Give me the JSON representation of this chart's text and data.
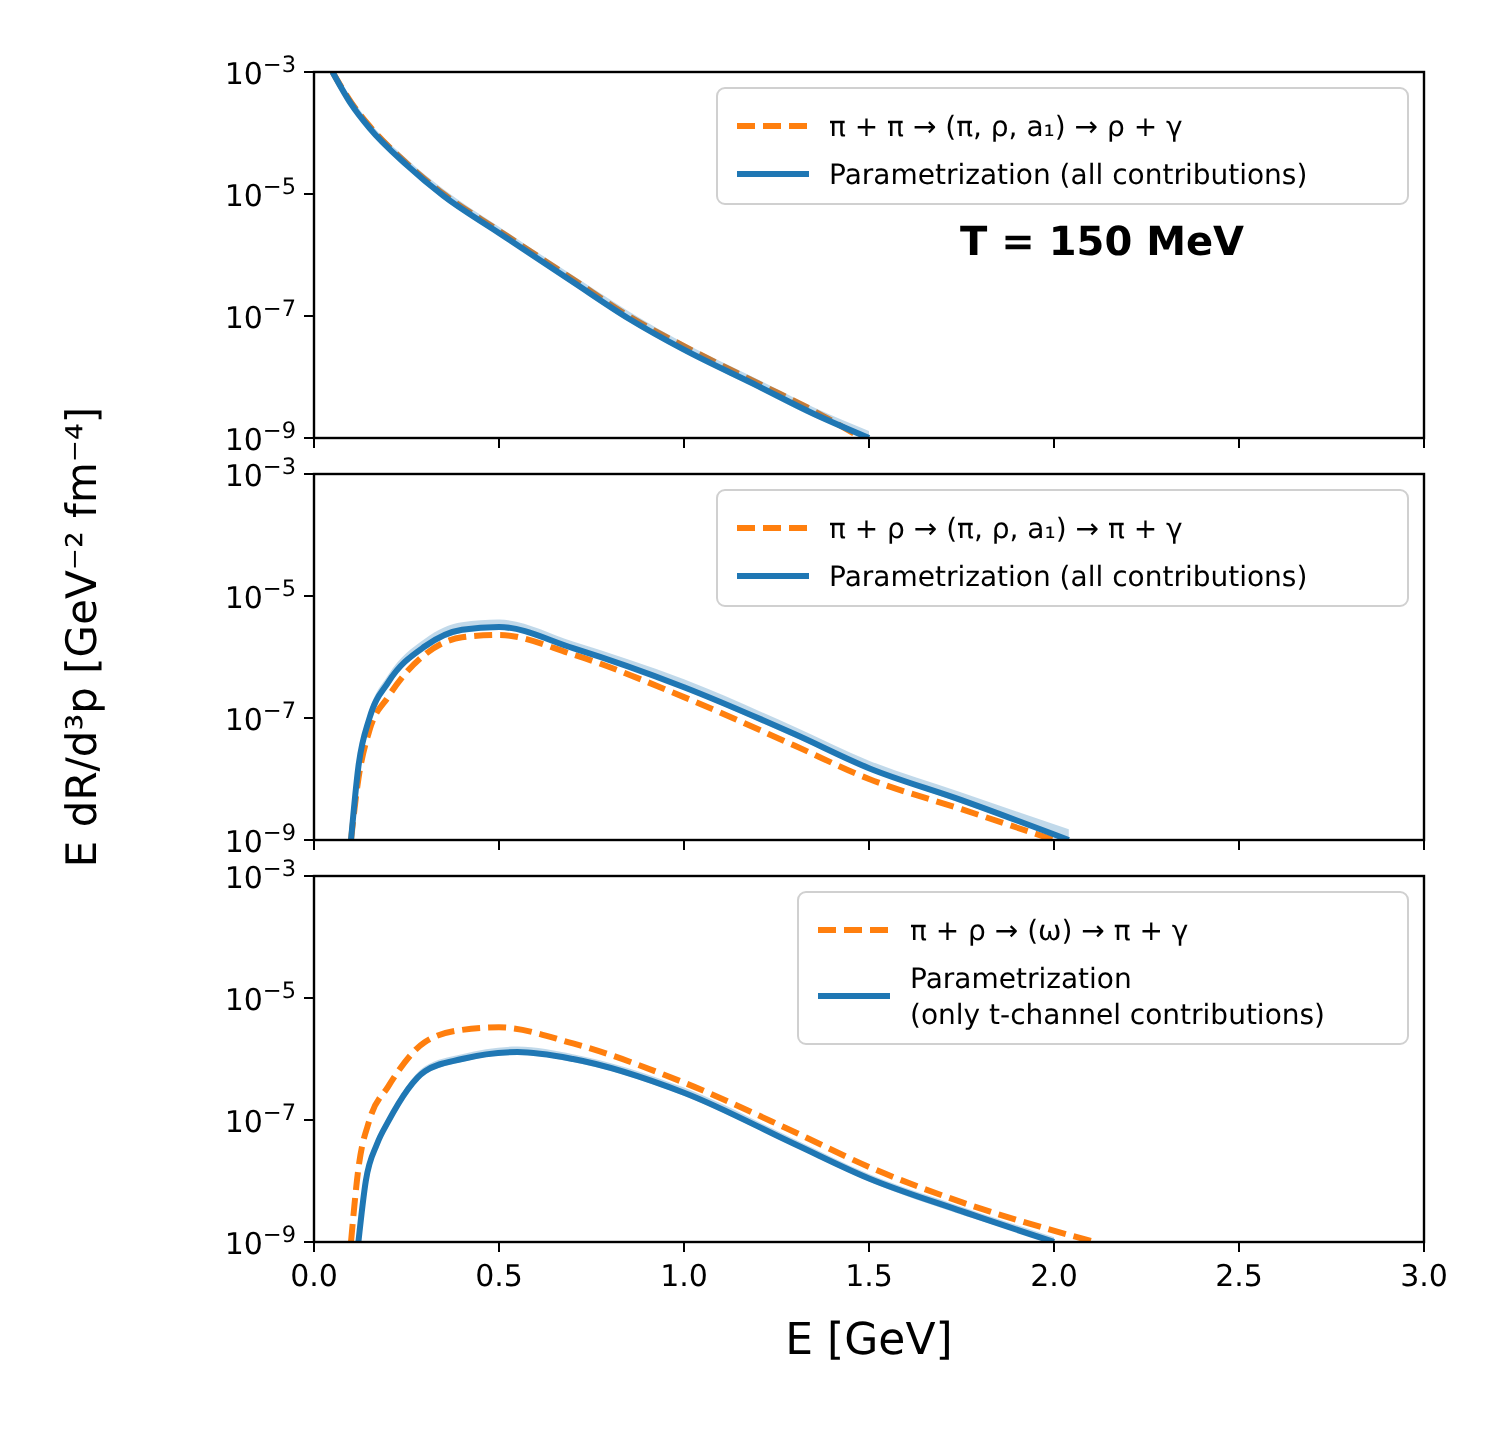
{
  "chart_data": [
    {
      "type": "line",
      "log": "y",
      "xlim": [
        0,
        3
      ],
      "ylim": [
        1e-09,
        0.001
      ],
      "tick_labels": "y",
      "legend": "top right",
      "xticks": [
        {
          "value": 0,
          "label": null
        },
        {
          "value": 0.5,
          "label": null
        },
        {
          "value": 1,
          "label": null
        },
        {
          "value": 1.5,
          "label": null
        },
        {
          "value": 2,
          "label": null
        },
        {
          "value": 2.5,
          "label": null
        },
        {
          "value": 3,
          "label": null
        }
      ],
      "yticks": [
        {
          "value": 1e-09,
          "label": "10$^{−9}$"
        },
        {
          "value": 1e-07,
          "label": "10$^{−7}$"
        },
        {
          "value": 1e-05,
          "label": "10$^{−5}$"
        },
        {
          "value": 0.001,
          "label": "10$^{−3}$"
        }
      ],
      "annotations": [
        "T = 150 MeV"
      ],
      "series": [
        {
          "name": "π + π → (π, ρ, a₁) → ρ + γ",
          "color": "#ff7f0e",
          "line_style": "dashed",
          "x": [
            0.05,
            0.1,
            0.15,
            0.25,
            0.35,
            0.5,
            0.7,
            0.85,
            1.0,
            1.2,
            1.35,
            1.48
          ],
          "values": [
            0.001,
            0.00032,
            0.00013,
            3.2e-05,
            1e-05,
            2.5e-06,
            4e-07,
            1e-07,
            3.2e-08,
            7.9e-09,
            2.8e-09,
            1e-09
          ]
        },
        {
          "name": "Parametrization (all contributions)",
          "color": "#1f77b4",
          "line_style": "solid",
          "x": [
            0.05,
            0.1,
            0.15,
            0.25,
            0.35,
            0.5,
            0.7,
            0.85,
            1.0,
            1.2,
            1.35,
            1.5
          ],
          "values": [
            0.001,
            0.0003,
            0.00012,
            3e-05,
            9.3e-06,
            2.3e-06,
            3.6e-07,
            9.1e-08,
            2.8e-08,
            7.1e-09,
            2.5e-09,
            1e-09
          ],
          "upper": [
            0.001,
            0.00038,
            0.00015,
            3.8e-05,
            1.2e-05,
            2.9e-06,
            4.6e-07,
            1.2e-07,
            3.6e-08,
            9.1e-09,
            3.2e-09,
            1.3e-09
          ],
          "lower": [
            0.00089,
            0.00027,
            0.00011,
            2.7e-05,
            8.3e-06,
            2.1e-06,
            3.2e-07,
            8.1e-08,
            2.5e-08,
            6.3e-09,
            2.2e-09,
            1e-09
          ]
        }
      ]
    },
    {
      "type": "line",
      "log": "y",
      "xlim": [
        0,
        3
      ],
      "ylim": [
        1e-09,
        0.001
      ],
      "tick_labels": "y",
      "legend": "top right",
      "ylabel": "E dR/d³p  [GeV⁻² fm⁻⁴]",
      "xticks": [
        {
          "value": 0,
          "label": null
        },
        {
          "value": 0.5,
          "label": null
        },
        {
          "value": 1,
          "label": null
        },
        {
          "value": 1.5,
          "label": null
        },
        {
          "value": 2,
          "label": null
        },
        {
          "value": 2.5,
          "label": null
        },
        {
          "value": 3,
          "label": null
        }
      ],
      "yticks": [
        {
          "value": 1e-09,
          "label": "10$^{−9}$"
        },
        {
          "value": 1e-07,
          "label": "10$^{−7}$"
        },
        {
          "value": 1e-05,
          "label": "10$^{−5}$"
        },
        {
          "value": 0.001,
          "label": "10$^{−3}$"
        }
      ],
      "series": [
        {
          "name": "π + ρ → (π, ρ, a₁) → π + γ",
          "color": "#ff7f0e",
          "line_style": "dashed",
          "x": [
            0.1,
            0.12,
            0.15,
            0.2,
            0.3,
            0.4,
            0.5,
            0.7,
            1.0,
            1.3,
            1.5,
            1.75,
            2.0
          ],
          "values": [
            1e-09,
            1e-08,
            6.3e-08,
            2.2e-07,
            1.1e-06,
            2.1e-06,
            2.3e-06,
            1.1e-06,
            2.2e-07,
            3.5e-08,
            1e-08,
            3.2e-09,
            1e-09
          ]
        },
        {
          "name": "Parametrization (all contributions)",
          "color": "#1f77b4",
          "line_style": "solid",
          "x": [
            0.1,
            0.12,
            0.15,
            0.2,
            0.3,
            0.4,
            0.5,
            0.7,
            1.0,
            1.3,
            1.5,
            1.75,
            2.04
          ],
          "values": [
            1e-09,
            1.6e-08,
            1e-07,
            3.8e-07,
            1.5e-06,
            2.8e-06,
            3.1e-06,
            1.4e-06,
            3.2e-07,
            5.4e-08,
            1.5e-08,
            4.5e-09,
            1e-09
          ],
          "upper": [
            1e-09,
            2.1e-08,
            1.3e-07,
            5e-07,
            2e-06,
            3.7e-06,
            4.1e-06,
            1.8e-06,
            4.3e-07,
            7.1e-08,
            2e-08,
            6e-09,
            1.5e-09
          ],
          "lower": [
            1e-09,
            1.4e-08,
            8.9e-08,
            3.4e-07,
            1.3e-06,
            2.5e-06,
            2.8e-06,
            1.3e-06,
            2.9e-07,
            4.8e-08,
            1.4e-08,
            4e-09,
            1e-09
          ]
        }
      ]
    },
    {
      "type": "line",
      "log": "y",
      "xlim": [
        0,
        3
      ],
      "ylim": [
        1e-09,
        0.001
      ],
      "legend": "top right",
      "xlabel": "E  [GeV]",
      "xticks": [
        {
          "value": 0,
          "label": "0.0"
        },
        {
          "value": 0.5,
          "label": "0.5"
        },
        {
          "value": 1,
          "label": "1.0"
        },
        {
          "value": 1.5,
          "label": "1.5"
        },
        {
          "value": 2,
          "label": "2.0"
        },
        {
          "value": 2.5,
          "label": "2.5"
        },
        {
          "value": 3,
          "label": "3.0"
        }
      ],
      "yticks": [
        {
          "value": 1e-09,
          "label": "10$^{−9}$"
        },
        {
          "value": 1e-07,
          "label": "10$^{−7}$"
        },
        {
          "value": 1e-05,
          "label": "10$^{−5}$"
        },
        {
          "value": 0.001,
          "label": "10$^{−3}$"
        }
      ],
      "series": [
        {
          "name": "π + ρ → (ω) → π + γ",
          "color": "#ff7f0e",
          "line_style": "dashed",
          "x": [
            0.1,
            0.12,
            0.15,
            0.2,
            0.3,
            0.4,
            0.5,
            0.7,
            1.0,
            1.3,
            1.5,
            1.75,
            2.11
          ],
          "values": [
            1e-09,
            1.6e-08,
            1e-07,
            3.5e-07,
            1.9e-06,
            3e-06,
            3.3e-06,
            1.8e-06,
            4.1e-07,
            6.3e-08,
            1.7e-08,
            4.5e-09,
            1e-09
          ]
        },
        {
          "name": "Parametrization (only t-channel contributions)",
          "color": "#1f77b4",
          "line_style": "solid",
          "x": [
            0.12,
            0.14,
            0.17,
            0.2,
            0.3,
            0.4,
            0.55,
            0.7,
            1.0,
            1.3,
            1.5,
            1.75,
            2.0
          ],
          "values": [
            1e-09,
            1e-08,
            4e-08,
            9.3e-08,
            6.3e-07,
            1e-06,
            1.3e-06,
            1e-06,
            2.8e-07,
            4e-08,
            1.1e-08,
            3.2e-09,
            1e-09
          ],
          "upper": [
            1e-09,
            1.2e-08,
            4.8e-08,
            1.1e-07,
            7.6e-07,
            1.2e-06,
            1.6e-06,
            1.2e-06,
            3.4e-07,
            4.8e-08,
            1.3e-08,
            3.8e-09,
            1.2e-09
          ],
          "lower": [
            1e-09,
            8.9e-09,
            3.6e-08,
            8.3e-08,
            5.6e-07,
            8.9e-07,
            1.2e-06,
            8.9e-07,
            2.5e-07,
            3.6e-08,
            9.8e-09,
            2.8e-09,
            1e-09
          ]
        }
      ]
    }
  ]
}
